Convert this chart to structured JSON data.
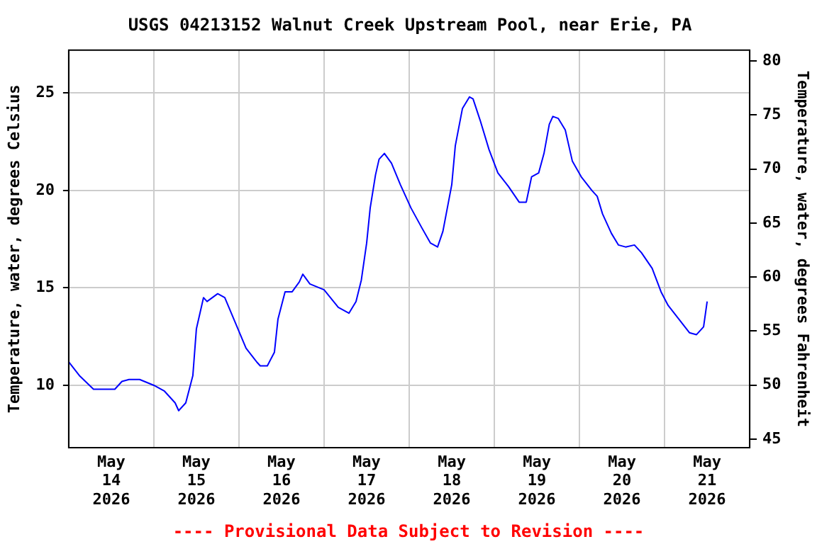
{
  "chart_data": {
    "type": "line",
    "title": "USGS 04213152 Walnut Creek Upstream Pool, near Erie, PA",
    "ylabel": "Temperature, water, degrees Celsius",
    "y2label": "Temperature, water, degrees Fahrenheit",
    "x": [
      "2026-05-14T00:00",
      "2026-05-14T03:00",
      "2026-05-14T07:00",
      "2026-05-14T13:00",
      "2026-05-14T15:00",
      "2026-05-14T17:00",
      "2026-05-14T20:00",
      "2026-05-15T00:00",
      "2026-05-15T03:00",
      "2026-05-15T06:00",
      "2026-05-15T07:00",
      "2026-05-15T09:00",
      "2026-05-15T11:00",
      "2026-05-15T12:00",
      "2026-05-15T14:00",
      "2026-05-15T15:00",
      "2026-05-15T18:00",
      "2026-05-15T20:00",
      "2026-05-15T23:00",
      "2026-05-16T02:00",
      "2026-05-16T05:00",
      "2026-05-16T06:00",
      "2026-05-16T08:00",
      "2026-05-16T10:00",
      "2026-05-16T11:00",
      "2026-05-16T13:00",
      "2026-05-16T15:00",
      "2026-05-16T17:00",
      "2026-05-16T18:00",
      "2026-05-16T20:00",
      "2026-05-17T00:00",
      "2026-05-17T04:00",
      "2026-05-17T07:00",
      "2026-05-17T09:00",
      "2026-05-17T10:30",
      "2026-05-17T12:00",
      "2026-05-17T13:00",
      "2026-05-17T14:30",
      "2026-05-17T15:30",
      "2026-05-17T17:00",
      "2026-05-17T19:00",
      "2026-05-17T21:30",
      "2026-05-18T00:30",
      "2026-05-18T03:30",
      "2026-05-18T06:00",
      "2026-05-18T08:00",
      "2026-05-18T09:30",
      "2026-05-18T12:00",
      "2026-05-18T13:00",
      "2026-05-18T15:00",
      "2026-05-18T17:00",
      "2026-05-18T18:00",
      "2026-05-18T20:00",
      "2026-05-18T22:30",
      "2026-05-19T01:00",
      "2026-05-19T04:00",
      "2026-05-19T07:00",
      "2026-05-19T09:00",
      "2026-05-19T10:30",
      "2026-05-19T12:30",
      "2026-05-19T14:00",
      "2026-05-19T15:30",
      "2026-05-19T16:30",
      "2026-05-19T18:00",
      "2026-05-19T20:00",
      "2026-05-19T22:00",
      "2026-05-20T00:30",
      "2026-05-20T03:30",
      "2026-05-20T05:00",
      "2026-05-20T06:30",
      "2026-05-20T09:00",
      "2026-05-20T11:00",
      "2026-05-20T13:00",
      "2026-05-20T15:30",
      "2026-05-20T17:30",
      "2026-05-20T20:30",
      "2026-05-20T23:00",
      "2026-05-21T01:00",
      "2026-05-21T04:00",
      "2026-05-21T07:00",
      "2026-05-21T09:00",
      "2026-05-21T11:00",
      "2026-05-21T12:00"
    ],
    "series": [
      {
        "color": "#0000ff",
        "values": [
          11.2,
          10.5,
          9.8,
          9.8,
          10.2,
          10.3,
          10.3,
          10.0,
          9.7,
          9.1,
          8.7,
          9.1,
          10.5,
          12.9,
          14.5,
          14.3,
          14.7,
          14.5,
          13.2,
          11.9,
          11.2,
          11.0,
          11.0,
          11.7,
          13.4,
          14.8,
          14.8,
          15.3,
          15.7,
          15.2,
          14.9,
          14.0,
          13.7,
          14.3,
          15.4,
          17.3,
          19.1,
          20.8,
          21.6,
          21.9,
          21.4,
          20.3,
          19.1,
          18.1,
          17.3,
          17.1,
          17.9,
          20.3,
          22.3,
          24.2,
          24.8,
          24.7,
          23.6,
          22.1,
          20.9,
          20.2,
          19.4,
          19.4,
          20.7,
          20.9,
          21.9,
          23.4,
          23.8,
          23.7,
          23.1,
          21.5,
          20.7,
          20.0,
          19.7,
          18.8,
          17.8,
          17.2,
          17.1,
          17.2,
          16.8,
          16.0,
          14.8,
          14.1,
          13.4,
          12.7,
          12.6,
          13.0,
          14.3
        ]
      }
    ],
    "xlim": [
      "2026-05-14T00:00",
      "2026-05-22T00:00"
    ],
    "xticks": [
      {
        "value": "2026-05-14T12:00",
        "label": "May 14 2026"
      },
      {
        "value": "2026-05-15T00:00",
        "label": null
      },
      {
        "value": "2026-05-15T12:00",
        "label": "May 15 2026"
      },
      {
        "value": "2026-05-16T00:00",
        "label": null
      },
      {
        "value": "2026-05-16T12:00",
        "label": "May 16 2026"
      },
      {
        "value": "2026-05-17T00:00",
        "label": null
      },
      {
        "value": "2026-05-17T12:00",
        "label": "May 17 2026"
      },
      {
        "value": "2026-05-18T00:00",
        "label": null
      },
      {
        "value": "2026-05-18T12:00",
        "label": "May 18 2026"
      },
      {
        "value": "2026-05-19T00:00",
        "label": null
      },
      {
        "value": "2026-05-19T12:00",
        "label": "May 19 2026"
      },
      {
        "value": "2026-05-20T00:00",
        "label": null
      },
      {
        "value": "2026-05-20T12:00",
        "label": "May 20 2026"
      },
      {
        "value": "2026-05-21T00:00",
        "label": null
      },
      {
        "value": "2026-05-21T12:00",
        "label": "May 21 2026"
      }
    ],
    "ylim": [
      6.8,
      27.2
    ],
    "yticks": [
      10,
      15,
      20,
      25
    ],
    "y2lim": [
      44.2,
      81.0
    ],
    "y2ticks": [
      45,
      50,
      55,
      60,
      65,
      70,
      75,
      80
    ],
    "grid": true,
    "annotations": [
      "---- Provisional Data Subject to Revision ----"
    ]
  }
}
